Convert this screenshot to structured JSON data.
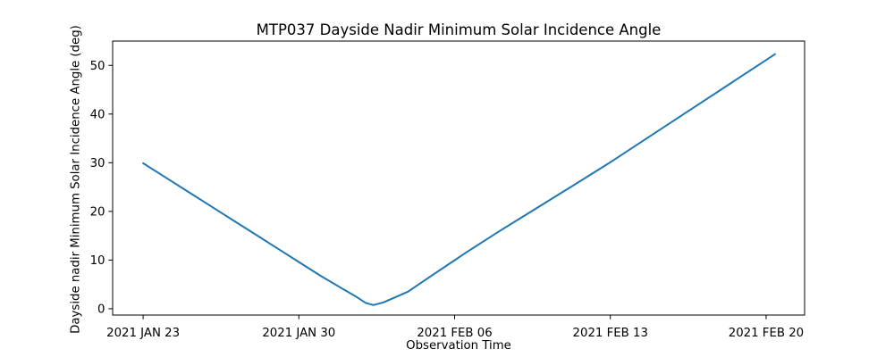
{
  "chart_data": {
    "type": "line",
    "title": "MTP037 Dayside Nadir Minimum Solar Incidence Angle",
    "xlabel": "Observation Time",
    "ylabel": "Dayside nadir Minimum Solar Incidence Angle (deg)",
    "xticks": [
      {
        "day": 0,
        "label": "2021 JAN 23"
      },
      {
        "day": 7,
        "label": "2021 JAN 30"
      },
      {
        "day": 14,
        "label": "2021 FEB 06"
      },
      {
        "day": 21,
        "label": "2021 FEB 13"
      },
      {
        "day": 28,
        "label": "2021 FEB 20"
      }
    ],
    "yticks": [
      0,
      10,
      20,
      30,
      40,
      50
    ],
    "xlim_days": [
      -1.37,
      29.73
    ],
    "ylim": [
      -1.3,
      55.0
    ],
    "grid": false,
    "legend": false,
    "colors": {
      "line": "#1f77b4",
      "spine": "#000000",
      "text": "#000000",
      "background": "#ffffff"
    },
    "series": [
      {
        "points": [
          [
            0,
            29.9
          ],
          [
            1,
            27.0
          ],
          [
            2,
            24.1
          ],
          [
            3,
            21.2
          ],
          [
            4,
            18.3
          ],
          [
            5,
            15.4
          ],
          [
            6,
            12.5
          ],
          [
            7,
            9.6
          ],
          [
            8,
            6.7
          ],
          [
            9,
            4.0
          ],
          [
            9.6,
            2.4
          ],
          [
            10,
            1.2
          ],
          [
            10.35,
            0.75
          ],
          [
            10.8,
            1.3
          ],
          [
            11.3,
            2.3
          ],
          [
            11.9,
            3.5
          ],
          [
            13,
            6.9
          ],
          [
            14.5,
            11.5
          ],
          [
            16,
            15.9
          ],
          [
            17.7,
            20.7
          ],
          [
            19,
            24.4
          ],
          [
            20.9,
            29.8
          ],
          [
            22,
            33.1
          ],
          [
            23,
            36.1
          ],
          [
            24,
            39.1
          ],
          [
            25,
            42.1
          ],
          [
            26,
            45.1
          ],
          [
            27,
            48.1
          ],
          [
            28,
            51.1
          ],
          [
            28.4,
            52.3
          ]
        ]
      }
    ]
  }
}
